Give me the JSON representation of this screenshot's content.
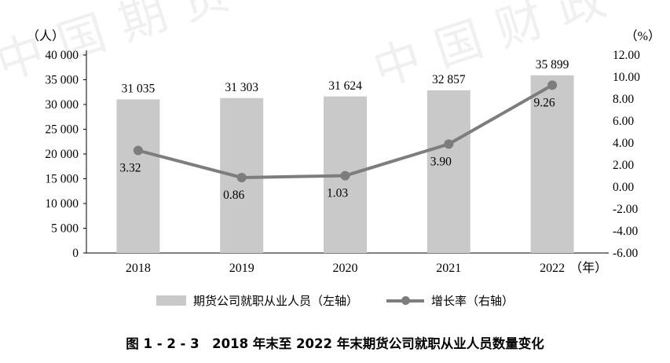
{
  "watermarks": [
    "中国期货",
    "中国财政"
  ],
  "caption": "图 1 - 2 - 3　2018 年末至 2022 年末期货公司就职从业人员数量变化",
  "chart_data": {
    "type": "combo",
    "categories": [
      "2018",
      "2019",
      "2020",
      "2021",
      "2022"
    ],
    "x_axis_suffix": "（年）",
    "left_axis_unit": "（人）",
    "right_axis_unit": "（%）",
    "left_axis": {
      "min": 0,
      "max": 40000,
      "step": 5000,
      "tick_labels": [
        "40 000",
        "35 000",
        "30 000",
        "25 000",
        "20 000",
        "15 000",
        "10 000",
        "5 000",
        "0"
      ]
    },
    "right_axis": {
      "min": -6,
      "max": 12,
      "step": 2,
      "tick_labels": [
        "12.00",
        "10.00",
        "8.00",
        "6.00",
        "4.00",
        "2.00",
        "0.00",
        "-2.00",
        "-4.00",
        "-6.00"
      ]
    },
    "series": [
      {
        "name": "期货公司就职从业人员（左轴）",
        "type": "bar",
        "axis": "left",
        "values": [
          31035,
          31303,
          31624,
          32857,
          35899
        ],
        "labels": [
          "31 035",
          "31 303",
          "31 624",
          "32 857",
          "35 899"
        ],
        "color": "#c9c9c9"
      },
      {
        "name": "增长率（右轴）",
        "type": "line",
        "axis": "right",
        "values": [
          3.32,
          0.86,
          1.03,
          3.9,
          9.26
        ],
        "labels": [
          "3.32",
          "0.86",
          "1.03",
          "3.90",
          "9.26"
        ],
        "color": "#7d7d7d"
      }
    ],
    "legend": [
      "期货公司就职从业人员（左轴）",
      "增长率（右轴）"
    ]
  }
}
